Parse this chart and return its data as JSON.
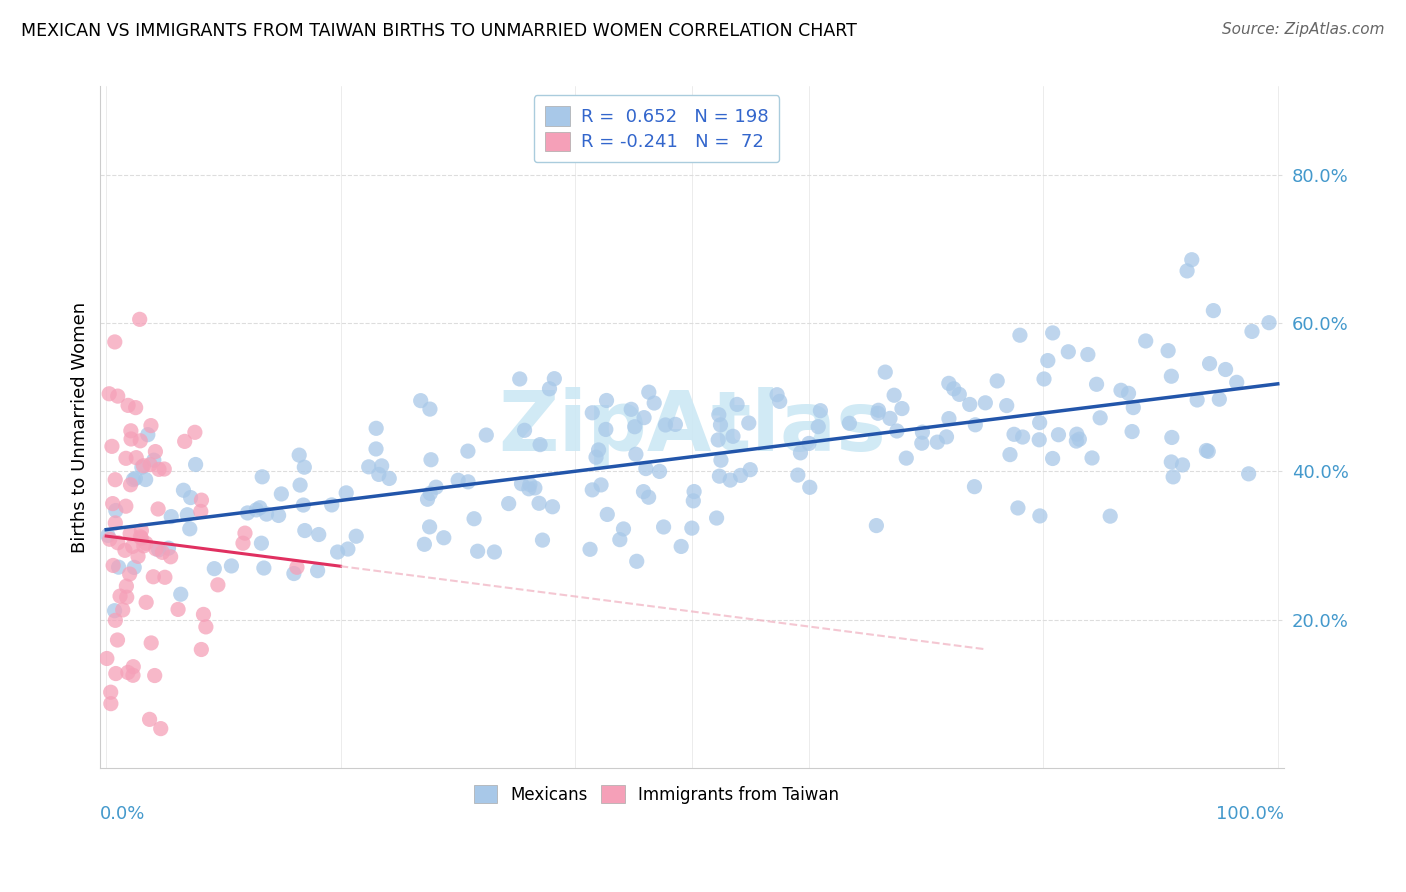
{
  "title": "MEXICAN VS IMMIGRANTS FROM TAIWAN BIRTHS TO UNMARRIED WOMEN CORRELATION CHART",
  "source": "Source: ZipAtlas.com",
  "ylabel": "Births to Unmarried Women",
  "r_mexican": 0.652,
  "n_mexican": 198,
  "r_taiwan": -0.241,
  "n_taiwan": 72,
  "blue_dot_color": "#a8c8e8",
  "blue_line_color": "#2255aa",
  "pink_dot_color": "#f5a0b8",
  "pink_line_color": "#e03060",
  "pink_line_dash_color": "#f0b0c0",
  "watermark_color": "#cce8f4",
  "ytick_color": "#4499cc",
  "xtick_color": "#4499cc",
  "background": "#ffffff",
  "grid_color": "#dddddd",
  "xlim": [
    0.0,
    1.0
  ],
  "ylim": [
    0.0,
    0.92
  ],
  "yticks": [
    0.2,
    0.4,
    0.6,
    0.8
  ],
  "ytick_labels": [
    "20.0%",
    "40.0%",
    "60.0%",
    "80.0%"
  ],
  "legend_box_color": "#f0f8ff",
  "legend_edge_color": "#aaccdd"
}
